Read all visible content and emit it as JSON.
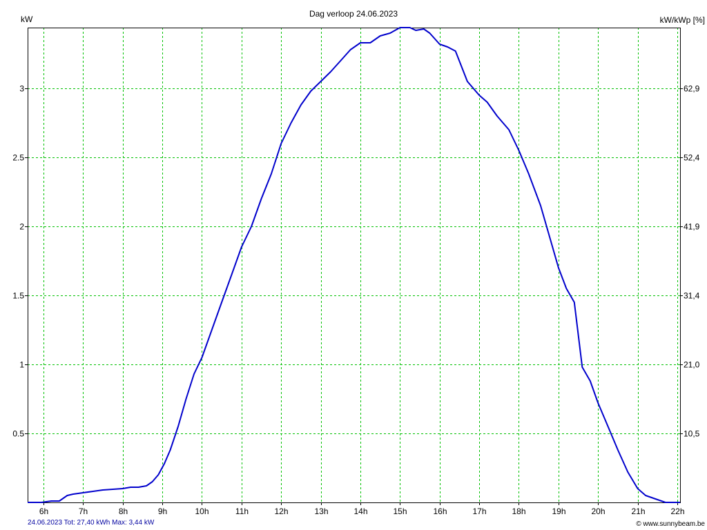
{
  "chart_data": {
    "type": "line",
    "title": "Dag  verloop 24.06.2023",
    "ylabel_left": "kW",
    "ylabel_right": "kW/kWp [%]",
    "xlim": [
      5.6,
      22.07
    ],
    "ylim": [
      0,
      3.44
    ],
    "x_ticks": [
      6,
      7,
      8,
      9,
      10,
      11,
      12,
      13,
      14,
      15,
      16,
      17,
      18,
      19,
      20,
      21,
      22
    ],
    "x_tick_labels": [
      "6h",
      "7h",
      "8h",
      "9h",
      "10h",
      "11h",
      "12h",
      "13h",
      "14h",
      "15h",
      "16h",
      "17h",
      "18h",
      "19h",
      "20h",
      "21h",
      "22h"
    ],
    "y_ticks": [
      0.5,
      1,
      1.5,
      2,
      2.5,
      3
    ],
    "y_tick_labels": [
      "0.5",
      "1",
      "1.5",
      "2",
      "2.5",
      "3"
    ],
    "y2_ticks": [
      0.5,
      1,
      1.5,
      2,
      2.5,
      3
    ],
    "y2_tick_labels": [
      "10,5",
      "21,0",
      "31,4",
      "41,9",
      "52,4",
      "62,9"
    ],
    "grid": true,
    "line_color": "#0000cc",
    "grid_color": "#00c000",
    "series": [
      {
        "x": [
          5.6,
          5.95,
          6.2,
          6.4,
          6.6,
          6.75,
          7.0,
          7.25,
          7.5,
          8.0,
          8.2,
          8.4,
          8.6,
          8.75,
          8.9,
          9.05,
          9.2,
          9.4,
          9.6,
          9.8,
          10.0,
          10.25,
          10.5,
          10.75,
          11.0,
          11.25,
          11.5,
          11.75,
          12.0,
          12.25,
          12.5,
          12.75,
          13.0,
          13.25,
          13.5,
          13.75,
          14.0,
          14.25,
          14.5,
          14.75,
          15.0,
          15.25,
          15.4,
          15.6,
          15.75,
          16.0,
          16.2,
          16.4,
          16.7,
          17.0,
          17.2,
          17.45,
          17.6,
          17.75,
          18.0,
          18.25,
          18.55,
          18.8,
          19.0,
          19.2,
          19.4,
          19.6,
          19.8,
          20.0,
          20.25,
          20.5,
          20.75,
          21.0,
          21.2,
          21.5,
          21.7,
          22.07
        ],
        "y": [
          0.0,
          0.0,
          0.01,
          0.01,
          0.05,
          0.06,
          0.07,
          0.08,
          0.09,
          0.1,
          0.11,
          0.11,
          0.12,
          0.15,
          0.2,
          0.28,
          0.38,
          0.55,
          0.75,
          0.93,
          1.05,
          1.25,
          1.45,
          1.65,
          1.85,
          2.0,
          2.2,
          2.38,
          2.6,
          2.75,
          2.88,
          2.98,
          3.05,
          3.12,
          3.2,
          3.28,
          3.33,
          3.33,
          3.38,
          3.4,
          3.44,
          3.44,
          3.42,
          3.43,
          3.4,
          3.32,
          3.3,
          3.27,
          3.05,
          2.95,
          2.9,
          2.8,
          2.75,
          2.7,
          2.55,
          2.38,
          2.15,
          1.9,
          1.7,
          1.55,
          1.45,
          0.98,
          0.88,
          0.72,
          0.55,
          0.38,
          0.22,
          0.1,
          0.05,
          0.02,
          0.0,
          0.0
        ]
      }
    ]
  },
  "footer": {
    "summary": "24.06.2023 Tot: 27,40 kWh Max: 3,44 kW",
    "copyright": "© www.sunnybeam.be"
  }
}
